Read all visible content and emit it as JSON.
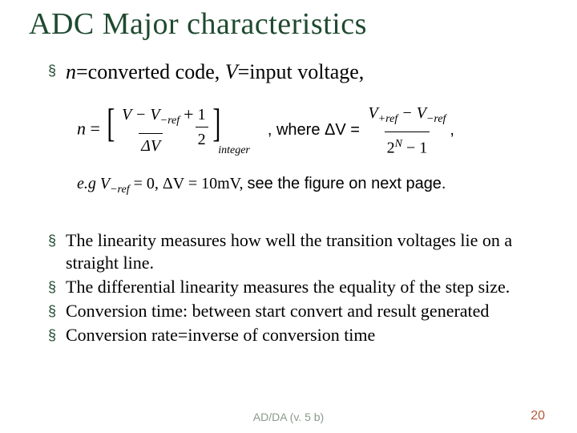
{
  "title": "ADC Major characteristics",
  "bullet_marker": "§",
  "top_bullet": {
    "var_n": "n",
    "eq1": "=converted code, ",
    "var_v": "V",
    "eq2": "=input voltage,"
  },
  "formula": {
    "lhs_var": "n",
    "eq": " = ",
    "num1_a": "V − V",
    "num1_sub": "−ref",
    "den1": "ΔV",
    "plus": " + ",
    "half_num": "1",
    "half_den": "2",
    "sub_label": "integer",
    "where": " , where ΔV = ",
    "num2_a": "V",
    "num2_sub1": "+ref",
    "num2_mid": " − V",
    "num2_sub2": "−ref",
    "den2_a": "2",
    "den2_sup": "N",
    "den2_b": " − 1",
    "trailing_comma": ",",
    "eg_prefix_italic": "e.g ",
    "eg_body_a": "V",
    "eg_sub": "−ref",
    "eg_body_b": " = 0,  ΔV = 10mV, ",
    "eg_tail": "see the figure on next page."
  },
  "bullets": [
    "The linearity measures how well the transition voltages lie on a straight line.",
    "The differential linearity measures the equality of the step size.",
    "Conversion time: between start convert and result generated",
    "Conversion rate=inverse of conversion time"
  ],
  "footer": "AD/DA (v. 5 b)",
  "page": "20",
  "colors": {
    "title": "#1f4a2f",
    "bullet": "#1f4a2f",
    "footer": "#8a9a8a",
    "page": "#b35a3a",
    "bg": "#ffffff",
    "text": "#000000"
  }
}
